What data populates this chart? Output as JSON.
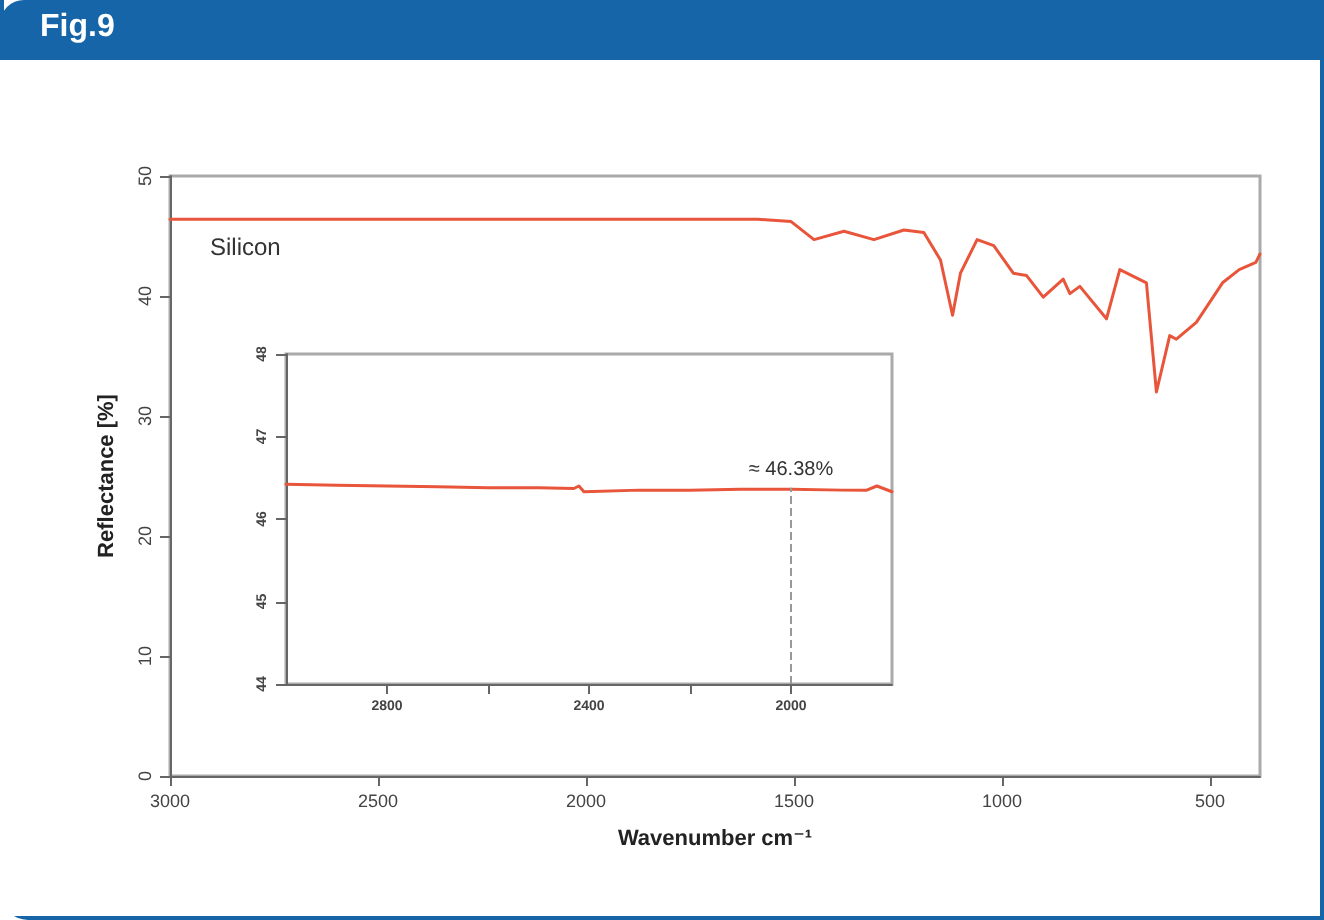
{
  "chart_data": [
    {
      "type": "line",
      "title": "Fig.9",
      "xlabel": "Wavenumber cm⁻¹",
      "ylabel": "Reflectance [%]",
      "series": [
        {
          "name": "Silicon",
          "color": "#e8553a",
          "x": [
            3000,
            2600,
            2200,
            1800,
            1587,
            1507,
            1452,
            1380,
            1308,
            1236,
            1188,
            1148,
            1119,
            1100,
            1060,
            1020,
            973,
            941,
            901,
            853,
            837,
            813,
            749,
            717,
            653,
            629,
            597,
            581,
            533,
            470,
            430,
            390,
            380
          ],
          "values": [
            46.4,
            46.4,
            46.4,
            46.4,
            46.4,
            46.2,
            44.7,
            45.4,
            44.7,
            45.5,
            45.3,
            43.0,
            38.4,
            41.9,
            44.7,
            44.2,
            41.9,
            41.7,
            39.9,
            41.4,
            40.2,
            40.8,
            38.1,
            42.2,
            41.1,
            32.0,
            36.7,
            36.4,
            37.8,
            41.1,
            42.2,
            42.8,
            43.5
          ]
        }
      ],
      "xlim": [
        3000,
        380
      ],
      "xticks": [
        3000,
        2500,
        2000,
        1500,
        1000,
        500
      ],
      "ylim": [
        0,
        50
      ],
      "yticks": [
        0,
        10,
        20,
        30,
        40,
        50
      ],
      "grid": false,
      "legend": false,
      "marker": "none",
      "line_style": "solid"
    },
    {
      "type": "line",
      "series": [
        {
          "color": "#e8553a",
          "x": [
            3000,
            2900,
            2800,
            2700,
            2600,
            2500,
            2430,
            2420,
            2410,
            2300,
            2200,
            2100,
            2000,
            1900,
            1850,
            1830,
            1800
          ],
          "values": [
            46.42,
            46.41,
            46.4,
            46.39,
            46.38,
            46.38,
            46.37,
            46.4,
            46.33,
            46.35,
            46.35,
            46.36,
            46.36,
            46.35,
            46.35,
            46.4,
            46.33
          ]
        }
      ],
      "xlim": [
        3000,
        1800
      ],
      "xticks": [
        2800,
        {
          "value": 2600,
          "label": null
        },
        2400,
        {
          "value": 2200,
          "label": null
        },
        2000
      ],
      "ylim": [
        44,
        48
      ],
      "yticks": [
        44,
        45,
        46,
        47,
        48
      ],
      "ref_lines": [
        {
          "axis": "x",
          "value": 2000,
          "color": "#999999",
          "line_style": "dashed"
        }
      ],
      "annotations": [
        {
          "text": "≈ 46.38%",
          "x": 2000,
          "y": 46.38
        }
      ],
      "grid": false,
      "legend": false,
      "marker": "none",
      "line_style": "solid"
    }
  ]
}
